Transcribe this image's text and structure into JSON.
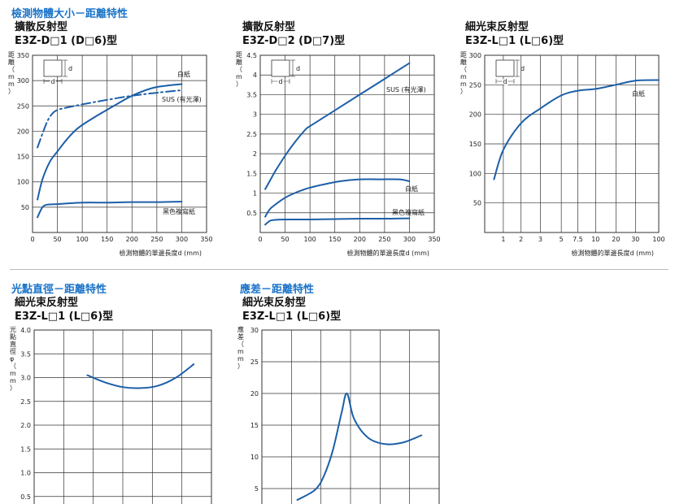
{
  "header": {
    "section1": "檢測物體大小－距離特性",
    "section2": "光點直徑－距離特性",
    "section3": "應差－距離特性"
  },
  "colors": {
    "accent": "#1a73c8",
    "curve": "#1c5fa8"
  },
  "chart_data": [
    {
      "id": "c1",
      "type": "line",
      "title": [
        "擴散反射型",
        "E3Z-D□1 (D□6)型"
      ],
      "ylabel": "距離（mm）",
      "xlabel": "檢測物體的單邊長度d (mm)",
      "xlim": [
        0,
        350
      ],
      "ylim": [
        0,
        350
      ],
      "xticks": [
        "0",
        "50",
        "100",
        "150",
        "200",
        "250",
        "300",
        "350"
      ],
      "yticks": [
        "50",
        "100",
        "150",
        "200",
        "250",
        "300",
        "350"
      ],
      "xgrid": [
        50,
        100,
        150,
        200,
        250,
        300
      ],
      "ygrid": [
        50,
        100,
        150,
        200,
        250,
        300
      ],
      "grid": true,
      "series": [
        {
          "name": "白紙",
          "style": "solid",
          "x": [
            10,
            20,
            35,
            50,
            70,
            90,
            120,
            160,
            200,
            240,
            270,
            300
          ],
          "y": [
            65,
            105,
            140,
            160,
            185,
            205,
            225,
            248,
            270,
            285,
            290,
            293
          ]
        },
        {
          "name": "SUS (有光澤)",
          "style": "dashdot",
          "x": [
            10,
            20,
            30,
            40,
            50,
            70,
            100,
            150,
            200,
            250,
            300
          ],
          "y": [
            168,
            195,
            220,
            235,
            242,
            247,
            253,
            262,
            270,
            276,
            281
          ]
        },
        {
          "name": "黑色複寫紙",
          "style": "solid",
          "x": [
            10,
            20,
            30,
            50,
            100,
            150,
            200,
            250,
            300
          ],
          "y": [
            30,
            50,
            55,
            56,
            59,
            59,
            60,
            60,
            61
          ]
        }
      ],
      "inset": {
        "h": "d",
        "w": "d"
      }
    },
    {
      "id": "c2",
      "type": "line",
      "title": [
        "擴散反射型",
        "E3Z-D□2 (D□7)型"
      ],
      "ylabel": "距離（m）",
      "xlabel": "檢測物體的單邊長度d (mm)",
      "xlim": [
        0,
        350
      ],
      "ylim": [
        0,
        4.5
      ],
      "xticks": [
        "0",
        "50",
        "100",
        "150",
        "200",
        "250",
        "300",
        "350"
      ],
      "yticks": [
        "0.5",
        "1",
        "1.5",
        "2",
        "2.5",
        "3",
        "3.5",
        "4",
        "4.5"
      ],
      "xgrid": [
        50,
        100,
        150,
        200,
        250,
        300
      ],
      "ygrid": [
        0.5,
        1,
        1.5,
        2,
        2.5,
        3,
        3.5,
        4
      ],
      "grid": true,
      "series": [
        {
          "name": "SUS (有光澤)",
          "style": "solid",
          "x": [
            10,
            30,
            50,
            70,
            90,
            100,
            150,
            200,
            250,
            300
          ],
          "y": [
            1.1,
            1.55,
            1.95,
            2.3,
            2.6,
            2.7,
            3.1,
            3.5,
            3.9,
            4.3
          ]
        },
        {
          "name": "白紙",
          "style": "solid",
          "x": [
            10,
            20,
            40,
            60,
            90,
            120,
            160,
            200,
            240,
            280,
            300
          ],
          "y": [
            0.4,
            0.6,
            0.8,
            0.95,
            1.1,
            1.2,
            1.3,
            1.35,
            1.35,
            1.35,
            1.3
          ]
        },
        {
          "name": "黑色複寫紙",
          "style": "solid",
          "x": [
            10,
            20,
            30,
            50,
            100,
            150,
            200,
            250,
            300
          ],
          "y": [
            0.2,
            0.3,
            0.32,
            0.33,
            0.33,
            0.34,
            0.35,
            0.35,
            0.36
          ]
        }
      ],
      "inset": {
        "h": "d",
        "w": "d"
      }
    },
    {
      "id": "c3",
      "type": "line",
      "xscale": "custom",
      "title": [
        "細光束反射型",
        "E3Z-L□1 (L□6)型"
      ],
      "ylabel": "距離（mm）",
      "xlabel": "檢測物體的單邊長度d (mm)",
      "xlim": [
        0,
        100
      ],
      "ylim": [
        0,
        300
      ],
      "xticks": [
        "1",
        "2",
        "3",
        "5",
        "7.5",
        "10",
        "20",
        "30",
        "100"
      ],
      "yticks": [
        "50",
        "100",
        "150",
        "200",
        "250",
        "300"
      ],
      "ygrid": [
        50,
        100,
        150,
        200,
        250
      ],
      "grid": true,
      "series": [
        {
          "name": "白紙",
          "style": "solid",
          "x": [
            0.5,
            1,
            2,
            3,
            5,
            7.5,
            10,
            20,
            30,
            100
          ],
          "y": [
            90,
            140,
            185,
            210,
            232,
            240,
            243,
            250,
            257,
            258
          ]
        }
      ],
      "inset": {
        "h": "d",
        "w": "d"
      }
    },
    {
      "id": "c4",
      "type": "line",
      "title": [
        "細光束反射型",
        "E3Z-L□1 (L□6)型"
      ],
      "ylabel": "光點直徑φ（mm）",
      "ylim": [
        0,
        4.0
      ],
      "yticks": [
        "0.5",
        "1.0",
        "1.5",
        "2.0",
        "2.5",
        "3.0",
        "3.5",
        "4.0"
      ],
      "ygrid": [
        0.5,
        1.0,
        1.5,
        2.0,
        2.5,
        3.0,
        3.5
      ],
      "grid": true,
      "series": [
        {
          "style": "solid",
          "x": [
            0.3,
            0.4,
            0.5,
            0.6,
            0.7,
            0.8,
            0.9
          ],
          "y": [
            3.05,
            2.9,
            2.8,
            2.78,
            2.83,
            3.0,
            3.28
          ]
        }
      ]
    },
    {
      "id": "c5",
      "type": "line",
      "title": [
        "細光束反射型",
        "E3Z-L□1 (L□6)型"
      ],
      "ylabel": "應差（mm）",
      "ylim": [
        0,
        30
      ],
      "yticks": [
        "5",
        "10",
        "15",
        "20",
        "25",
        "30"
      ],
      "ygrid": [
        5,
        10,
        15,
        20,
        25
      ],
      "grid": true,
      "series": [
        {
          "style": "solid",
          "x": [
            0.2,
            0.3,
            0.35,
            0.4,
            0.45,
            0.48,
            0.52,
            0.6,
            0.7,
            0.8,
            0.9
          ],
          "y": [
            3.2,
            4.8,
            7,
            11,
            17,
            20,
            16,
            13,
            12,
            12.3,
            13.4
          ]
        }
      ]
    }
  ]
}
